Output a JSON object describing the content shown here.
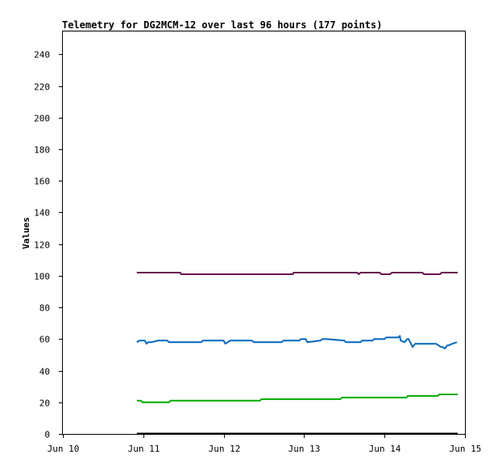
{
  "chart_data": {
    "type": "line",
    "title": "Telemetry for DG2MCM-12 over last 96 hours (177 points)",
    "ylabel": "Values",
    "xlabel": "",
    "xlim": [
      0,
      5
    ],
    "ylim": [
      0,
      255
    ],
    "x_ticks": [
      {
        "x": 0,
        "label": "Jun 10"
      },
      {
        "x": 1,
        "label": "Jun 11"
      },
      {
        "x": 2,
        "label": "Jun 12"
      },
      {
        "x": 3,
        "label": "Jun 13"
      },
      {
        "x": 4,
        "label": "Jun 14"
      },
      {
        "x": 5,
        "label": "Jun 15"
      }
    ],
    "y_ticks": [
      0,
      20,
      40,
      60,
      80,
      100,
      120,
      140,
      160,
      180,
      200,
      220,
      240
    ],
    "grid": false,
    "series": [
      {
        "color": "#6a0f4f",
        "x": [
          0.92,
          1.46,
          1.47,
          2.86,
          2.87,
          3.66,
          3.68,
          3.7,
          3.94,
          3.96,
          4.07,
          4.09,
          4.47,
          4.49,
          4.69,
          4.71,
          4.91
        ],
        "y": [
          102,
          102,
          101,
          101,
          102,
          102,
          101,
          102,
          102,
          101,
          101,
          102,
          102,
          101,
          101,
          102,
          102
        ]
      },
      {
        "color": "#0066bb",
        "x": [
          0.92,
          0.95,
          1.02,
          1.04,
          1.06,
          1.1,
          1.18,
          1.3,
          1.32,
          1.72,
          1.74,
          1.78,
          2.0,
          2.02,
          2.05,
          2.08,
          2.35,
          2.38,
          2.72,
          2.74,
          2.94,
          2.96,
          3.02,
          3.04,
          3.2,
          3.23,
          3.28,
          3.5,
          3.52,
          3.7,
          3.72,
          3.85,
          3.87,
          4.0,
          4.02,
          4.17,
          4.19,
          4.2,
          4.25,
          4.28,
          4.3,
          4.32,
          4.35,
          4.38,
          4.4,
          4.42,
          4.64,
          4.7,
          4.72,
          4.75,
          4.78,
          4.8,
          4.84,
          4.9
        ],
        "y": [
          58,
          59,
          59,
          57,
          58,
          58,
          59,
          59,
          58,
          58,
          59,
          59,
          59,
          57,
          58,
          59,
          59,
          58,
          58,
          59,
          59,
          60,
          60,
          58,
          59,
          60,
          60,
          59,
          58,
          58,
          59,
          59,
          60,
          60,
          61,
          61,
          62,
          59,
          58,
          60,
          60,
          58,
          55,
          57,
          57,
          57,
          57,
          55,
          55,
          54,
          56,
          56,
          57,
          58
        ]
      },
      {
        "color": "#00aa00",
        "x": [
          0.92,
          0.97,
          0.99,
          1.32,
          1.34,
          2.45,
          2.47,
          3.45,
          3.47,
          4.27,
          4.29,
          4.66,
          4.68,
          4.91
        ],
        "y": [
          21,
          21,
          20,
          20,
          21,
          21,
          22,
          22,
          23,
          23,
          24,
          24,
          25,
          25
        ]
      }
    ]
  }
}
